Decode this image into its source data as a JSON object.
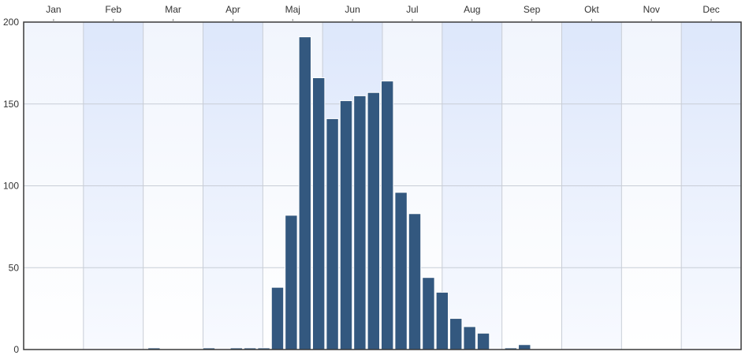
{
  "chart_data": {
    "type": "bar",
    "months": [
      "Jan",
      "Feb",
      "Mar",
      "Apr",
      "Maj",
      "Jun",
      "Jul",
      "Aug",
      "Sep",
      "Okt",
      "Nov",
      "Dec"
    ],
    "x_axis_position": "top",
    "bar_width_weeks": 1,
    "ylim": [
      0,
      200
    ],
    "y_ticks": [
      0,
      50,
      100,
      150,
      200
    ],
    "grid": true,
    "bar_color": "#33587f",
    "bars": [
      {
        "x": "2024-03-04",
        "y": 1
      },
      {
        "x": "2024-04-01",
        "y": 1
      },
      {
        "x": "2024-04-15",
        "y": 1
      },
      {
        "x": "2024-04-22",
        "y": 1
      },
      {
        "x": "2024-04-29",
        "y": 1
      },
      {
        "x": "2024-05-06",
        "y": 38
      },
      {
        "x": "2024-05-13",
        "y": 82
      },
      {
        "x": "2024-05-20",
        "y": 191
      },
      {
        "x": "2024-05-27",
        "y": 166
      },
      {
        "x": "2024-06-03",
        "y": 141
      },
      {
        "x": "2024-06-10",
        "y": 152
      },
      {
        "x": "2024-06-17",
        "y": 155
      },
      {
        "x": "2024-06-24",
        "y": 157
      },
      {
        "x": "2024-07-01",
        "y": 164
      },
      {
        "x": "2024-07-08",
        "y": 96
      },
      {
        "x": "2024-07-15",
        "y": 83
      },
      {
        "x": "2024-07-22",
        "y": 44
      },
      {
        "x": "2024-07-29",
        "y": 35
      },
      {
        "x": "2024-08-05",
        "y": 19
      },
      {
        "x": "2024-08-12",
        "y": 14
      },
      {
        "x": "2024-08-19",
        "y": 10
      },
      {
        "x": "2024-09-02",
        "y": 1
      },
      {
        "x": "2024-09-09",
        "y": 3
      }
    ]
  }
}
